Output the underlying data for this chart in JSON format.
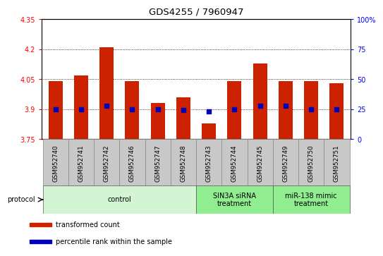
{
  "title": "GDS4255 / 7960947",
  "samples": [
    "GSM952740",
    "GSM952741",
    "GSM952742",
    "GSM952746",
    "GSM952747",
    "GSM952748",
    "GSM952743",
    "GSM952744",
    "GSM952745",
    "GSM952749",
    "GSM952750",
    "GSM952751"
  ],
  "transformed_count": [
    4.04,
    4.07,
    4.21,
    4.04,
    3.93,
    3.96,
    3.83,
    4.04,
    4.13,
    4.04,
    4.04,
    4.03
  ],
  "percentile_rank": [
    25,
    25,
    28,
    25,
    25,
    24,
    23,
    25,
    28,
    28,
    25,
    25
  ],
  "groups": [
    {
      "label": "control",
      "start": 0,
      "end": 6,
      "color": "#d4f5d4"
    },
    {
      "label": "SIN3A siRNA\ntreatment",
      "start": 6,
      "end": 9,
      "color": "#90ee90"
    },
    {
      "label": "miR-138 mimic\ntreatment",
      "start": 9,
      "end": 12,
      "color": "#90ee90"
    }
  ],
  "ylim_left": [
    3.75,
    4.35
  ],
  "ylim_right": [
    0,
    100
  ],
  "yticks_left": [
    3.75,
    3.9,
    4.05,
    4.2,
    4.35
  ],
  "yticks_left_labels": [
    "3.75",
    "3.9",
    "4.05",
    "4.2",
    "4.35"
  ],
  "yticks_right": [
    0,
    25,
    50,
    75,
    100
  ],
  "yticks_right_labels": [
    "0",
    "25",
    "50",
    "75",
    "100%"
  ],
  "bar_color": "#cc2200",
  "dot_color": "#0000bb",
  "bar_width": 0.55,
  "grid_yticks": [
    3.9,
    4.05,
    4.2
  ],
  "legend_items": [
    {
      "label": "transformed count",
      "color": "#cc2200"
    },
    {
      "label": "percentile rank within the sample",
      "color": "#0000bb"
    }
  ],
  "sample_box_color": "#c8c8c8",
  "protocol_arrow_label": "protocol"
}
